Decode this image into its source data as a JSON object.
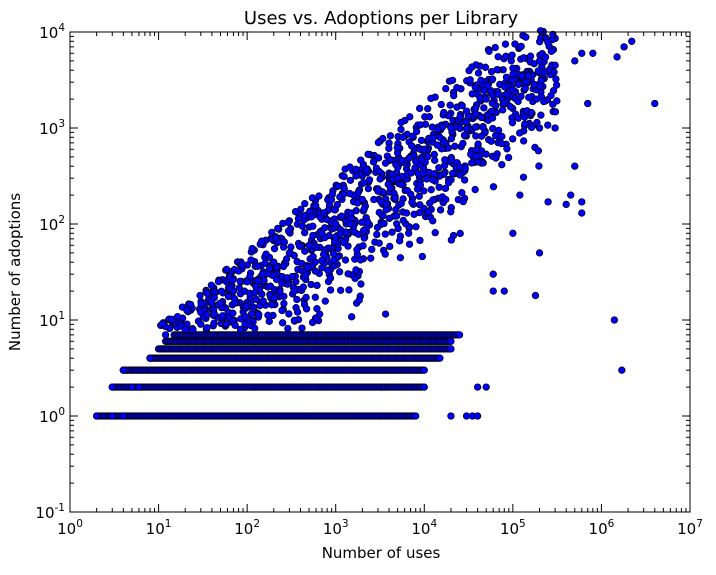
{
  "chart_data": {
    "type": "scatter",
    "title": "Uses vs. Adoptions per Library",
    "xlabel": "Number of uses",
    "ylabel": "Number of adoptions",
    "xscale": "log",
    "yscale": "log",
    "xlim": [
      1,
      10000000
    ],
    "ylim": [
      0.1,
      10000
    ],
    "grid": false,
    "legend": "none",
    "marker_color": "#0000ff",
    "marker_edge_color": "#000000",
    "x_ticks": [
      {
        "value": 1,
        "base": "10",
        "exp": "0"
      },
      {
        "value": 10,
        "base": "10",
        "exp": "1"
      },
      {
        "value": 100,
        "base": "10",
        "exp": "2"
      },
      {
        "value": 1000,
        "base": "10",
        "exp": "3"
      },
      {
        "value": 10000,
        "base": "10",
        "exp": "4"
      },
      {
        "value": 100000,
        "base": "10",
        "exp": "5"
      },
      {
        "value": 1000000,
        "base": "10",
        "exp": "6"
      },
      {
        "value": 10000000,
        "base": "10",
        "exp": "7"
      }
    ],
    "y_ticks": [
      {
        "value": 0.1,
        "base": "10",
        "exp": "-1"
      },
      {
        "value": 1,
        "base": "10",
        "exp": "0"
      },
      {
        "value": 10,
        "base": "10",
        "exp": "1"
      },
      {
        "value": 100,
        "base": "10",
        "exp": "2"
      },
      {
        "value": 1000,
        "base": "10",
        "exp": "3"
      },
      {
        "value": 10000,
        "base": "10",
        "exp": "4"
      }
    ],
    "bands": [
      {
        "y": 1,
        "x_range": [
          2,
          8000
        ]
      },
      {
        "y": 2,
        "x_range": [
          3,
          10000
        ]
      },
      {
        "y": 3,
        "x_range": [
          4,
          10000
        ]
      },
      {
        "y": 4,
        "x_range": [
          8,
          15000
        ]
      },
      {
        "y": 5,
        "x_range": [
          10,
          20000
        ]
      },
      {
        "y": 6,
        "x_range": [
          12,
          20000
        ]
      },
      {
        "y": 7,
        "x_range": [
          15,
          25000
        ]
      }
    ],
    "points": [
      [
        2,
        1
      ],
      [
        3,
        1
      ],
      [
        3,
        2
      ],
      [
        4,
        1
      ],
      [
        4,
        3
      ],
      [
        5,
        2
      ],
      [
        6,
        2
      ],
      [
        8,
        4
      ],
      [
        12,
        7
      ],
      [
        20,
        8
      ],
      [
        30,
        12
      ],
      [
        50,
        15
      ],
      [
        70,
        20
      ],
      [
        100,
        25
      ],
      [
        150,
        30
      ],
      [
        200,
        40
      ],
      [
        300,
        50
      ],
      [
        500,
        60
      ],
      [
        700,
        80
      ],
      [
        1000,
        100
      ],
      [
        1500,
        130
      ],
      [
        2000,
        180
      ],
      [
        3000,
        220
      ],
      [
        5000,
        300
      ],
      [
        8000,
        450
      ],
      [
        10000,
        600
      ],
      [
        15000,
        800
      ],
      [
        20000,
        1000
      ],
      [
        30000,
        1500
      ],
      [
        50000,
        2000
      ],
      [
        80000,
        1800
      ],
      [
        100000,
        2500
      ],
      [
        150000,
        3500
      ],
      [
        200000,
        5000
      ],
      [
        300000,
        4500
      ],
      [
        500000,
        5000
      ],
      [
        600000,
        6000
      ],
      [
        800000,
        6000
      ],
      [
        1500000,
        5500
      ],
      [
        1800000,
        7000
      ],
      [
        2200000,
        8000
      ],
      [
        4000000,
        1800
      ],
      [
        1400000,
        10
      ],
      [
        1700000,
        3
      ],
      [
        600000,
        130
      ],
      [
        500000,
        400
      ],
      [
        200000,
        1000
      ],
      [
        300000,
        1000
      ],
      [
        180000,
        18
      ],
      [
        200000,
        50
      ],
      [
        100000,
        80
      ],
      [
        60000,
        30
      ],
      [
        50000,
        2
      ],
      [
        40000,
        2
      ],
      [
        35000,
        1
      ],
      [
        30000,
        1
      ],
      [
        20000,
        1
      ],
      [
        40000,
        1
      ],
      [
        60000,
        20
      ],
      [
        80000,
        20
      ],
      [
        120000,
        200
      ],
      [
        250000,
        170
      ],
      [
        400000,
        160
      ],
      [
        600000,
        170
      ],
      [
        450000,
        200
      ],
      [
        700000,
        1800
      ]
    ]
  }
}
